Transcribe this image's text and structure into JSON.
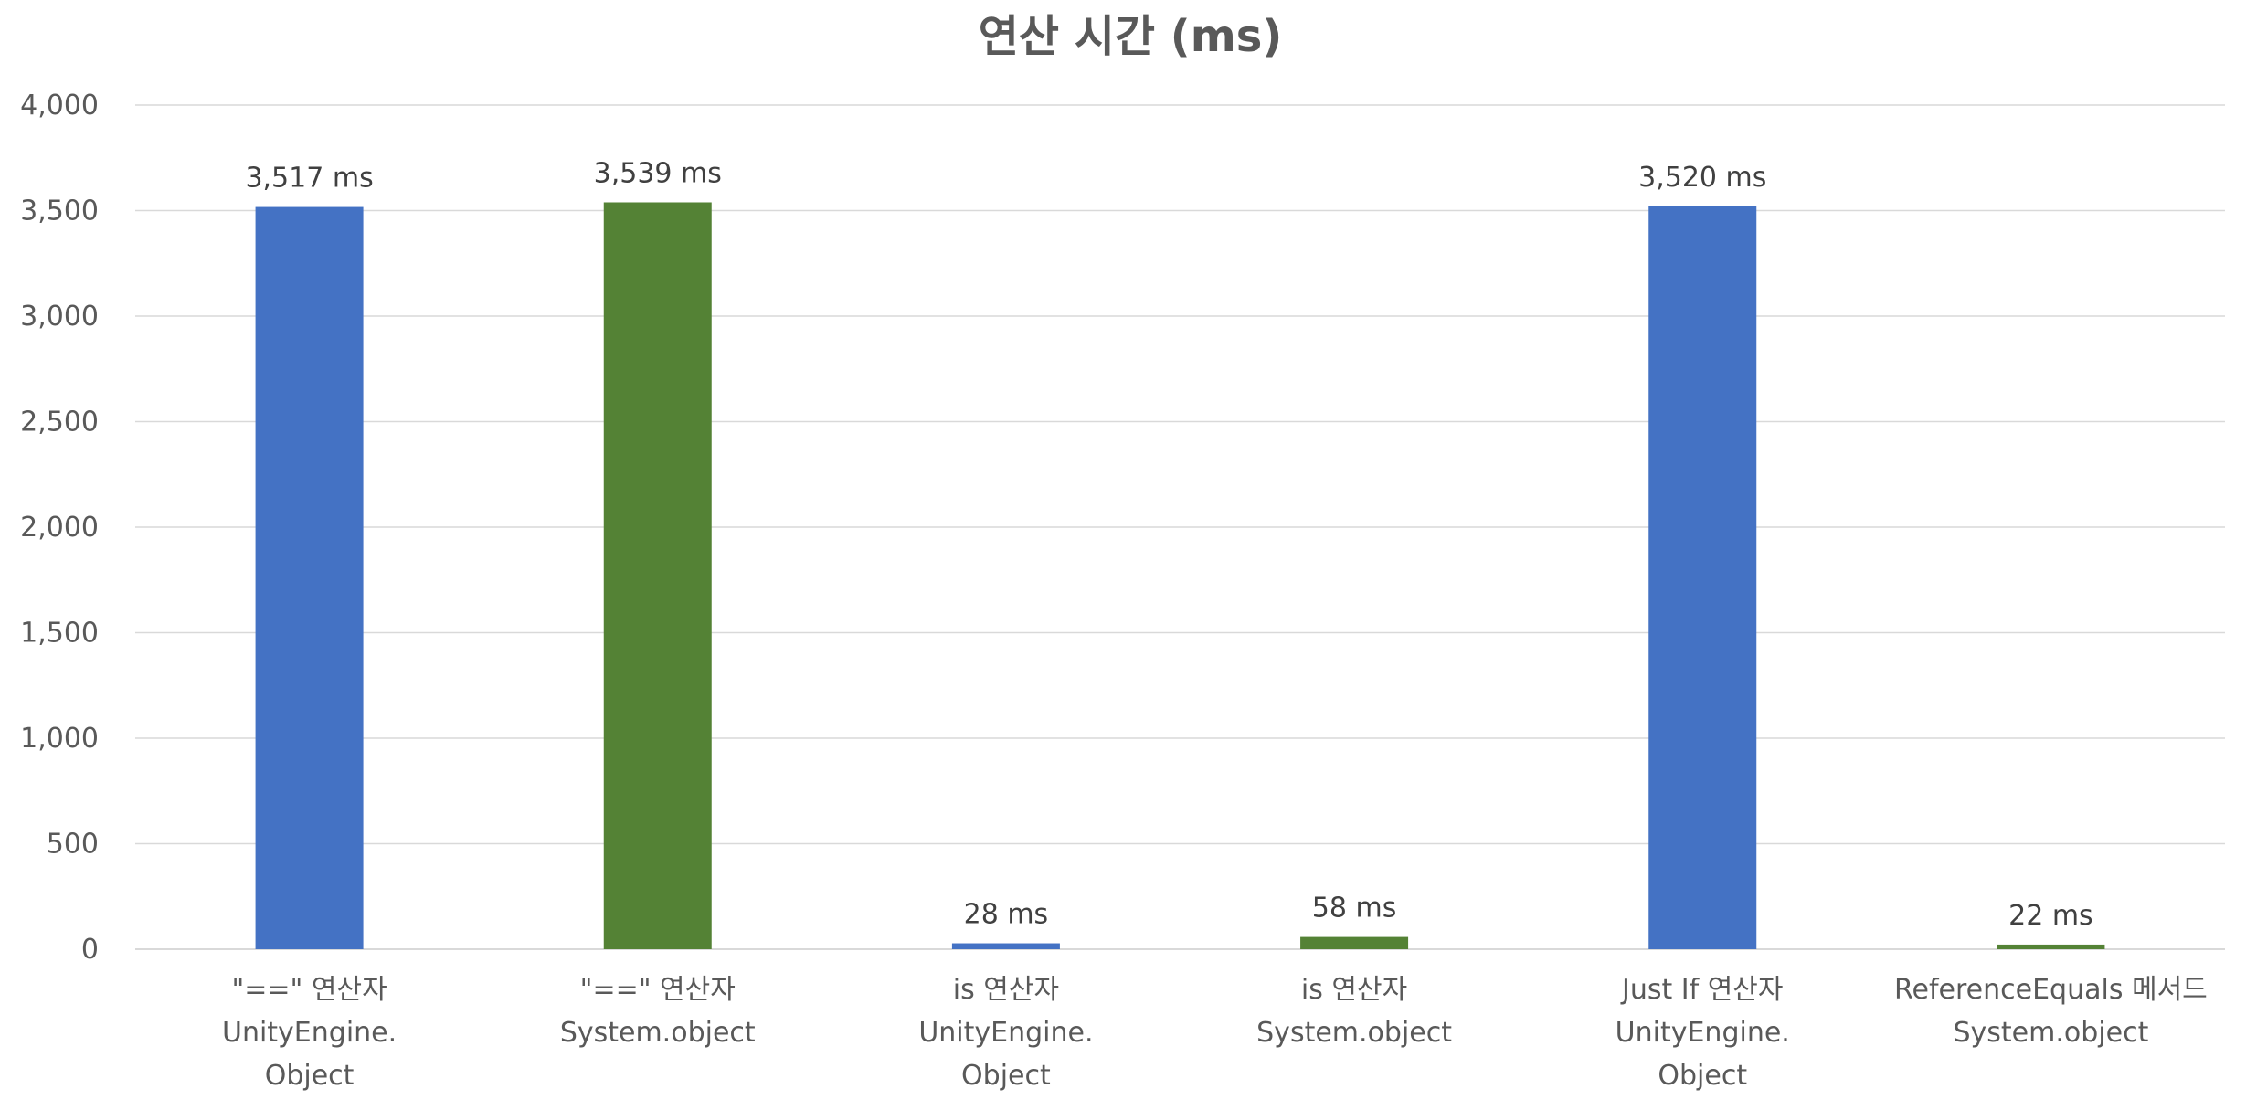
{
  "chart_data": {
    "type": "bar",
    "title": "연산 시간 (ms)",
    "xlabel": "",
    "ylabel": "",
    "ylim": [
      0,
      4000
    ],
    "yticks": [
      0,
      500,
      1000,
      1500,
      2000,
      2500,
      3000,
      3500,
      4000
    ],
    "ytick_labels": [
      "0",
      "500",
      "1,000",
      "1,500",
      "2,000",
      "2,500",
      "3,000",
      "3,500",
      "4,000"
    ],
    "grid": true,
    "legend": "none",
    "categories": [
      [
        "\"==\" 연산자",
        "UnityEngine.",
        "Object"
      ],
      [
        "\"==\" 연산자",
        "System.object"
      ],
      [
        "is 연산자",
        "UnityEngine.",
        "Object"
      ],
      [
        "is 연산자",
        "System.object"
      ],
      [
        "Just If 연산자",
        "UnityEngine.",
        "Object"
      ],
      [
        "ReferenceEquals 메서드",
        "System.object"
      ]
    ],
    "values": [
      3517,
      3539,
      28,
      58,
      3520,
      22
    ],
    "data_labels": [
      "3,517 ms",
      "3,539 ms",
      "28 ms",
      "58 ms",
      "3,520 ms",
      "22  ms"
    ],
    "bar_colors": [
      "#4472C4",
      "#548235",
      "#4472C4",
      "#548235",
      "#4472C4",
      "#548235"
    ]
  }
}
